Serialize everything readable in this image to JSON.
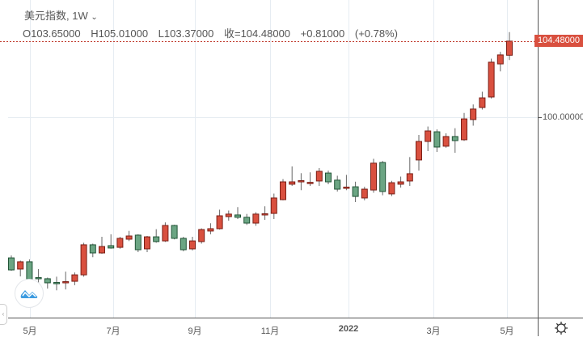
{
  "legend": {
    "symbol": "美元指数, 1W",
    "open": "O103.65000",
    "high": "H105.01000",
    "low": "L103.37000",
    "close": "收=104.48000",
    "change": "+0.81000",
    "change_pct": "(+0.78%)"
  },
  "price_axis": {
    "last_price_label": "104.48000",
    "tick_label": "100.00000"
  },
  "time_axis": [
    "5月",
    "7月",
    "9月",
    "11月",
    "2022",
    "3月",
    "5月"
  ],
  "colors": {
    "up": "#d9503f",
    "down": "#6ba583",
    "up_border": "#7a1f16",
    "down_border": "#225437"
  },
  "chart_data": {
    "type": "candlestick",
    "title": "美元指数, 1W",
    "ohlc": [
      [
        91.71,
        91.85,
        90.95,
        91.0
      ],
      [
        91.05,
        91.55,
        90.62,
        91.48
      ],
      [
        91.48,
        91.62,
        90.4,
        90.43
      ],
      [
        90.55,
        91.05,
        89.9,
        90.5
      ],
      [
        90.48,
        90.55,
        89.9,
        90.24
      ],
      [
        90.26,
        90.6,
        89.8,
        90.22
      ],
      [
        90.27,
        90.9,
        89.85,
        90.31
      ],
      [
        90.33,
        90.85,
        90.1,
        90.71
      ],
      [
        90.71,
        92.6,
        90.6,
        92.48
      ],
      [
        92.48,
        92.55,
        91.75,
        92.0
      ],
      [
        92.0,
        92.95,
        91.95,
        92.38
      ],
      [
        92.43,
        93.1,
        92.25,
        92.29
      ],
      [
        92.33,
        92.95,
        92.25,
        92.86
      ],
      [
        92.81,
        93.3,
        92.7,
        93.0
      ],
      [
        93.05,
        93.1,
        92.05,
        92.19
      ],
      [
        92.24,
        93.0,
        92.05,
        92.95
      ],
      [
        92.95,
        93.4,
        92.6,
        92.67
      ],
      [
        92.71,
        93.8,
        92.65,
        93.62
      ],
      [
        93.62,
        93.66,
        92.8,
        92.86
      ],
      [
        92.86,
        92.95,
        92.1,
        92.19
      ],
      [
        92.24,
        92.95,
        92.15,
        92.71
      ],
      [
        92.67,
        93.45,
        92.55,
        93.38
      ],
      [
        93.29,
        93.75,
        93.1,
        93.43
      ],
      [
        93.43,
        94.55,
        93.38,
        94.19
      ],
      [
        94.14,
        94.5,
        93.9,
        94.29
      ],
      [
        94.24,
        94.7,
        94.0,
        94.1
      ],
      [
        94.1,
        94.3,
        93.65,
        93.76
      ],
      [
        93.76,
        94.4,
        93.6,
        94.29
      ],
      [
        94.27,
        94.75,
        93.95,
        94.31
      ],
      [
        94.33,
        95.5,
        94.0,
        95.24
      ],
      [
        95.14,
        96.35,
        95.1,
        96.19
      ],
      [
        96.05,
        97.1,
        95.95,
        96.19
      ],
      [
        96.24,
        96.7,
        95.7,
        96.26
      ],
      [
        96.12,
        96.75,
        95.95,
        96.16
      ],
      [
        96.24,
        97.0,
        95.95,
        96.81
      ],
      [
        96.71,
        96.85,
        96.05,
        96.19
      ],
      [
        96.29,
        96.55,
        95.62,
        95.76
      ],
      [
        95.84,
        96.6,
        95.7,
        95.88
      ],
      [
        95.9,
        96.2,
        95.0,
        95.33
      ],
      [
        95.24,
        95.9,
        95.1,
        95.76
      ],
      [
        95.71,
        97.55,
        95.55,
        97.29
      ],
      [
        97.33,
        97.42,
        95.4,
        95.62
      ],
      [
        95.48,
        96.25,
        95.35,
        96.14
      ],
      [
        96.05,
        96.5,
        95.85,
        96.19
      ],
      [
        96.24,
        97.65,
        95.95,
        96.67
      ],
      [
        97.48,
        98.95,
        96.85,
        98.57
      ],
      [
        98.57,
        99.45,
        98.0,
        99.19
      ],
      [
        99.14,
        99.28,
        97.95,
        98.24
      ],
      [
        98.29,
        99.05,
        98.2,
        98.86
      ],
      [
        98.86,
        99.35,
        97.9,
        98.62
      ],
      [
        98.67,
        100.25,
        98.6,
        99.9
      ],
      [
        99.86,
        100.75,
        99.5,
        100.48
      ],
      [
        100.57,
        101.5,
        100.45,
        101.14
      ],
      [
        101.19,
        103.45,
        101.1,
        103.24
      ],
      [
        103.14,
        103.85,
        102.7,
        103.67
      ],
      [
        103.65,
        105.01,
        103.37,
        104.48
      ]
    ],
    "last_close": 104.48,
    "ylim": [
      90.2,
      107.0
    ]
  }
}
